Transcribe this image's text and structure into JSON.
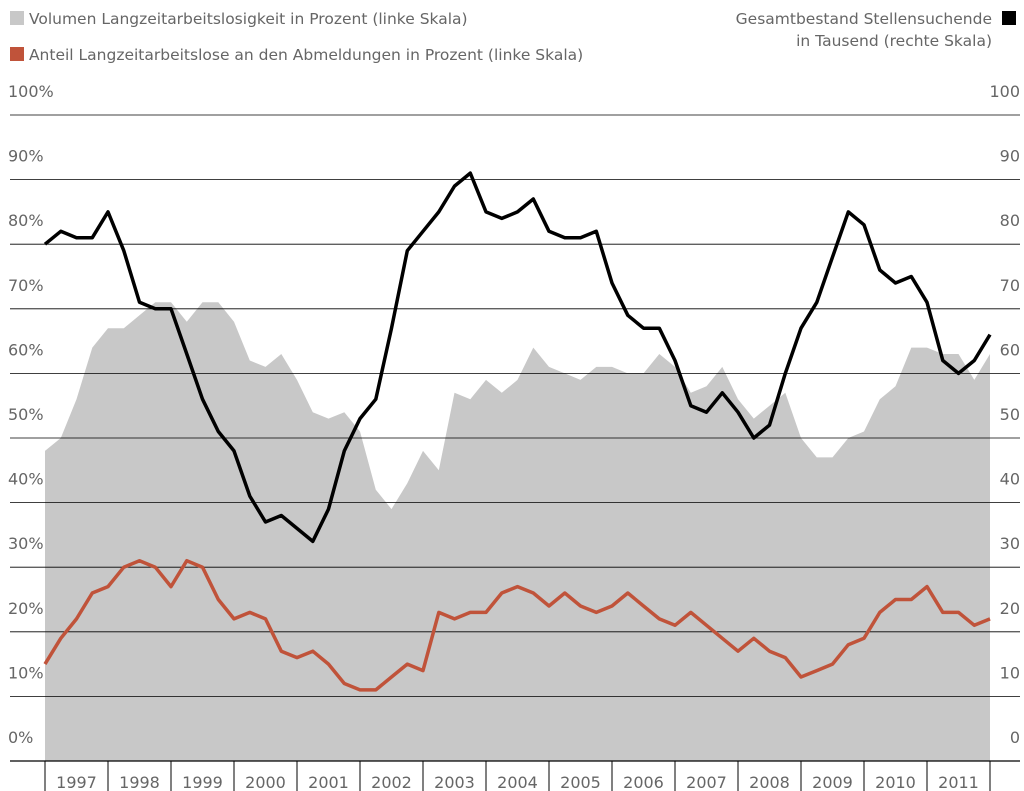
{
  "chart_data": {
    "type": "area-line",
    "x": [
      1997,
      1997.25,
      1997.5,
      1997.75,
      1998,
      1998.25,
      1998.5,
      1998.75,
      1999,
      1999.25,
      1999.5,
      1999.75,
      2000,
      2000.25,
      2000.5,
      2000.75,
      2001,
      2001.25,
      2001.5,
      2001.75,
      2002,
      2002.25,
      2002.5,
      2002.75,
      2003,
      2003.25,
      2003.5,
      2003.75,
      2004,
      2004.25,
      2004.5,
      2004.75,
      2005,
      2005.25,
      2005.5,
      2005.75,
      2006,
      2006.25,
      2006.5,
      2006.75,
      2007,
      2007.25,
      2007.5,
      2007.75,
      2008,
      2008.25,
      2008.5,
      2008.75,
      2009,
      2009.25,
      2009.5,
      2009.75,
      2010,
      2010.25,
      2010.5,
      2010.75,
      2011,
      2011.25,
      2011.5,
      2011.75,
      2012
    ],
    "xlim": [
      1997,
      2012
    ],
    "xticks": [
      {
        "value": 1997.5,
        "label": "1997"
      },
      {
        "value": 1998.5,
        "label": "1998"
      },
      {
        "value": 1999.5,
        "label": "1999"
      },
      {
        "value": 2000.5,
        "label": "2000"
      },
      {
        "value": 2001.5,
        "label": "2001"
      },
      {
        "value": 2002.5,
        "label": "2002"
      },
      {
        "value": 2003.5,
        "label": "2003"
      },
      {
        "value": 2004.5,
        "label": "2004"
      },
      {
        "value": 2005.5,
        "label": "2005"
      },
      {
        "value": 2006.5,
        "label": "2006"
      },
      {
        "value": 2007.5,
        "label": "2007"
      },
      {
        "value": 2008.5,
        "label": "2008"
      },
      {
        "value": 2009.5,
        "label": "2009"
      },
      {
        "value": 2010.5,
        "label": "2010"
      },
      {
        "value": 2011.5,
        "label": "2011"
      }
    ],
    "ylim": [
      0,
      100
    ],
    "yticks": [
      {
        "value": 0,
        "label": "0%"
      },
      {
        "value": 10,
        "label": "10%"
      },
      {
        "value": 20,
        "label": "20%"
      },
      {
        "value": 30,
        "label": "30%"
      },
      {
        "value": 40,
        "label": "40%"
      },
      {
        "value": 50,
        "label": "50%"
      },
      {
        "value": 60,
        "label": "60%"
      },
      {
        "value": 70,
        "label": "70%"
      },
      {
        "value": 80,
        "label": "80%"
      },
      {
        "value": 90,
        "label": "90%"
      },
      {
        "value": 100,
        "label": "100%"
      }
    ],
    "y2lim": [
      0,
      100
    ],
    "y2ticks": [
      0,
      10,
      20,
      30,
      40,
      50,
      60,
      70,
      80,
      90,
      100
    ],
    "grid": true,
    "series": [
      {
        "name": "Volumen Langzeitarbeitslosigkeit in Prozent (linke Skala)",
        "color": "#c8c8c8",
        "kind": "area",
        "values": [
          48,
          50,
          56,
          64,
          67,
          67,
          69,
          71,
          71,
          68,
          71,
          71,
          68,
          62,
          61,
          63,
          59,
          54,
          53,
          54,
          51,
          42,
          39,
          43,
          48,
          45,
          57,
          56,
          59,
          57,
          59,
          64,
          61,
          60,
          59,
          61,
          61,
          60,
          60,
          63,
          61,
          57,
          58,
          61,
          56,
          53,
          55,
          57,
          50,
          47,
          47,
          50,
          51,
          56,
          58,
          64,
          64,
          63,
          63,
          59,
          63
        ]
      },
      {
        "name": "Anteil Langzeitarbeitslose an den Abmeldungen in Prozent (linke Skala)",
        "color": "#c0533a",
        "kind": "line",
        "values": [
          15,
          19,
          22,
          26,
          27,
          30,
          31,
          30,
          27,
          31,
          30,
          25,
          22,
          23,
          22,
          17,
          16,
          17,
          15,
          12,
          11,
          11,
          13,
          15,
          14,
          23,
          22,
          23,
          23,
          26,
          27,
          26,
          24,
          26,
          24,
          23,
          24,
          26,
          24,
          22,
          21,
          23,
          21,
          19,
          17,
          19,
          17,
          16,
          13,
          14,
          15,
          18,
          19,
          23,
          25,
          25,
          27,
          23,
          23,
          21,
          22
        ]
      },
      {
        "name": "Gesamtbestand Stellensuchende in Tausend (rechte Skala)",
        "color": "#000000",
        "kind": "line",
        "axis": "y2",
        "values": [
          80,
          82,
          81,
          81,
          85,
          79,
          71,
          70,
          70,
          63,
          56,
          51,
          48,
          41,
          37,
          38,
          36,
          34,
          39,
          48,
          53,
          56,
          67,
          79,
          82,
          85,
          89,
          91,
          85,
          84,
          85,
          87,
          82,
          81,
          81,
          82,
          74,
          69,
          67,
          67,
          62,
          55,
          54,
          57,
          54,
          50,
          52,
          60,
          67,
          71,
          78,
          85,
          83,
          76,
          74,
          75,
          71,
          62,
          60,
          62,
          66
        ]
      }
    ]
  }
}
